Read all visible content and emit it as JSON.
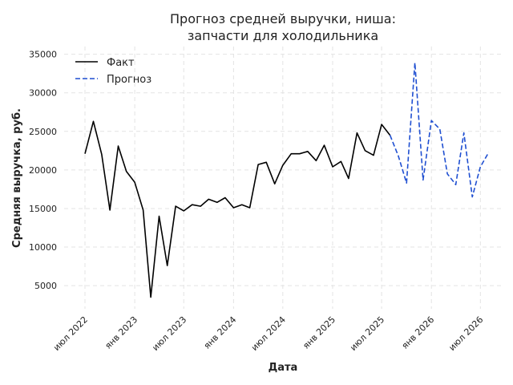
{
  "chart_data": {
    "type": "line",
    "title": "Прогноз средней выручки, ниша:\nзапчасти для холодильника",
    "xlabel": "Дата",
    "ylabel": "Средняя выручка, руб.",
    "ylim": [
      2000,
      36000
    ],
    "xlim": [
      "2022-04-15",
      "2026-09-15"
    ],
    "yticks": [
      5000,
      10000,
      15000,
      20000,
      25000,
      30000,
      35000
    ],
    "xticks": [
      {
        "date": "2022-07-01",
        "label": "июл 2022"
      },
      {
        "date": "2023-01-01",
        "label": "янв 2023"
      },
      {
        "date": "2023-07-01",
        "label": "июл 2023"
      },
      {
        "date": "2024-01-01",
        "label": "янв 2024"
      },
      {
        "date": "2024-07-01",
        "label": "июл 2024"
      },
      {
        "date": "2025-01-01",
        "label": "янв 2025"
      },
      {
        "date": "2025-07-01",
        "label": "июл 2025"
      },
      {
        "date": "2026-01-01",
        "label": "янв 2026"
      },
      {
        "date": "2026-07-01",
        "label": "июл 2026"
      }
    ],
    "grid": true,
    "legend": "top-left",
    "series": [
      {
        "name": "Факт",
        "color": "#000000",
        "style": "solid",
        "x": [
          "2022-07-01",
          "2022-08-01",
          "2022-09-01",
          "2022-10-01",
          "2022-11-01",
          "2022-12-01",
          "2023-01-01",
          "2023-02-01",
          "2023-03-01",
          "2023-04-01",
          "2023-05-01",
          "2023-06-01",
          "2023-07-01",
          "2023-08-01",
          "2023-09-01",
          "2023-10-01",
          "2023-11-01",
          "2023-12-01",
          "2024-01-01",
          "2024-02-01",
          "2024-03-01",
          "2024-04-01",
          "2024-05-01",
          "2024-06-01",
          "2024-07-01",
          "2024-08-01",
          "2024-09-01",
          "2024-10-01",
          "2024-11-01",
          "2024-12-01",
          "2025-01-01",
          "2025-02-01",
          "2025-03-01",
          "2025-04-01",
          "2025-05-01",
          "2025-06-01",
          "2025-07-01",
          "2025-08-01"
        ],
        "y": [
          22100,
          26300,
          22000,
          14800,
          23100,
          19800,
          18400,
          14800,
          3500,
          14000,
          7600,
          15300,
          14700,
          15500,
          15300,
          16200,
          15800,
          16400,
          15100,
          15500,
          15100,
          20700,
          21000,
          18200,
          20600,
          22100,
          22100,
          22400,
          21200,
          23200,
          20400,
          21100,
          18900,
          24800,
          22500,
          21900,
          25900,
          24500
        ]
      },
      {
        "name": "Прогноз",
        "color": "#1f4fd1",
        "style": "dashed",
        "x": [
          "2025-08-01",
          "2025-09-01",
          "2025-10-01",
          "2025-11-01",
          "2025-12-01",
          "2026-01-01",
          "2026-02-01",
          "2026-03-01",
          "2026-04-01",
          "2026-05-01",
          "2026-06-01",
          "2026-07-01",
          "2026-08-01"
        ],
        "y": [
          24500,
          21800,
          18300,
          33900,
          18700,
          26400,
          25300,
          19500,
          18100,
          24800,
          16500,
          20400,
          22300
        ]
      }
    ]
  }
}
